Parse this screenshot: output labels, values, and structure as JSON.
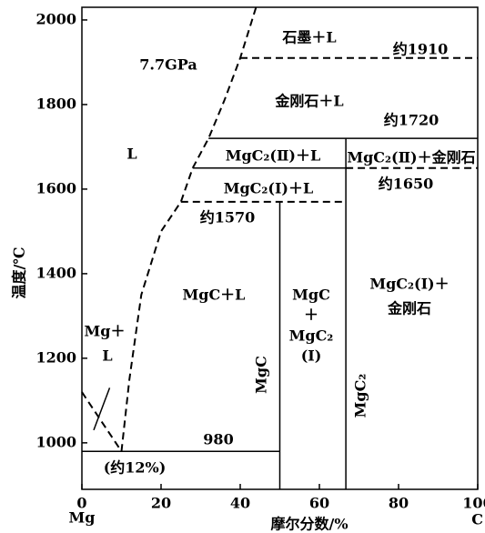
{
  "chart_data": {
    "type": "phase",
    "xlabel": "摩尔分数/%",
    "ylabel": "温度/℃",
    "x_end_labels": [
      "Mg",
      "C"
    ],
    "xlim": [
      0,
      100
    ],
    "ylim": [
      890,
      2030
    ],
    "xticks": [
      0,
      20,
      40,
      60,
      80,
      100
    ],
    "yticks": [
      1000,
      1200,
      1400,
      1600,
      1800,
      2000
    ],
    "color": "#000000",
    "labels": [
      "石墨＋L",
      "7.7GPa",
      "约1910",
      "金刚石＋L",
      "约1720",
      "L",
      "MgC₂(Ⅱ)＋L",
      "MgC₂(Ⅱ)＋金刚石",
      "MgC₂(Ⅰ)＋L",
      "约1650",
      "约1570",
      "MgC＋L",
      "MgC",
      "＋",
      "MgC₂",
      "(Ⅰ)",
      "MgC₂(Ⅰ)＋",
      "金刚石",
      "Mg＋",
      "L",
      "MgC",
      "MgC₂",
      "980",
      "(约12%)"
    ],
    "boundaries": [
      {
        "style": "solid",
        "x": [
          0,
          50
        ],
        "y": [
          980,
          980
        ]
      },
      {
        "style": "solid",
        "x": [
          50,
          50
        ],
        "y": [
          890,
          1570
        ]
      },
      {
        "style": "solid",
        "x": [
          66.7,
          66.7
        ],
        "y": [
          890,
          1720
        ]
      },
      {
        "style": "dashed",
        "x": [
          25,
          66.7
        ],
        "y": [
          1570,
          1570
        ]
      },
      {
        "style": "dashed",
        "x": [
          66.7,
          100
        ],
        "y": [
          1650,
          1650
        ]
      },
      {
        "style": "solid",
        "x": [
          28,
          66.7
        ],
        "y": [
          1650,
          1650
        ]
      },
      {
        "style": "solid",
        "x": [
          32,
          100
        ],
        "y": [
          1720,
          1720
        ]
      },
      {
        "style": "dashed",
        "x": [
          40,
          100
        ],
        "y": [
          1910,
          1910
        ]
      },
      {
        "style": "dashed",
        "x": [
          10,
          12,
          15,
          20,
          25,
          28,
          32,
          36,
          40,
          44
        ],
        "y": [
          980,
          1150,
          1350,
          1500,
          1570,
          1650,
          1720,
          1810,
          1910,
          2030
        ]
      },
      {
        "style": "dashed",
        "x": [
          0,
          10
        ],
        "y": [
          1120,
          980
        ]
      },
      {
        "style": "solid",
        "x": [
          3,
          7
        ],
        "y": [
          1030,
          1130
        ]
      }
    ]
  }
}
